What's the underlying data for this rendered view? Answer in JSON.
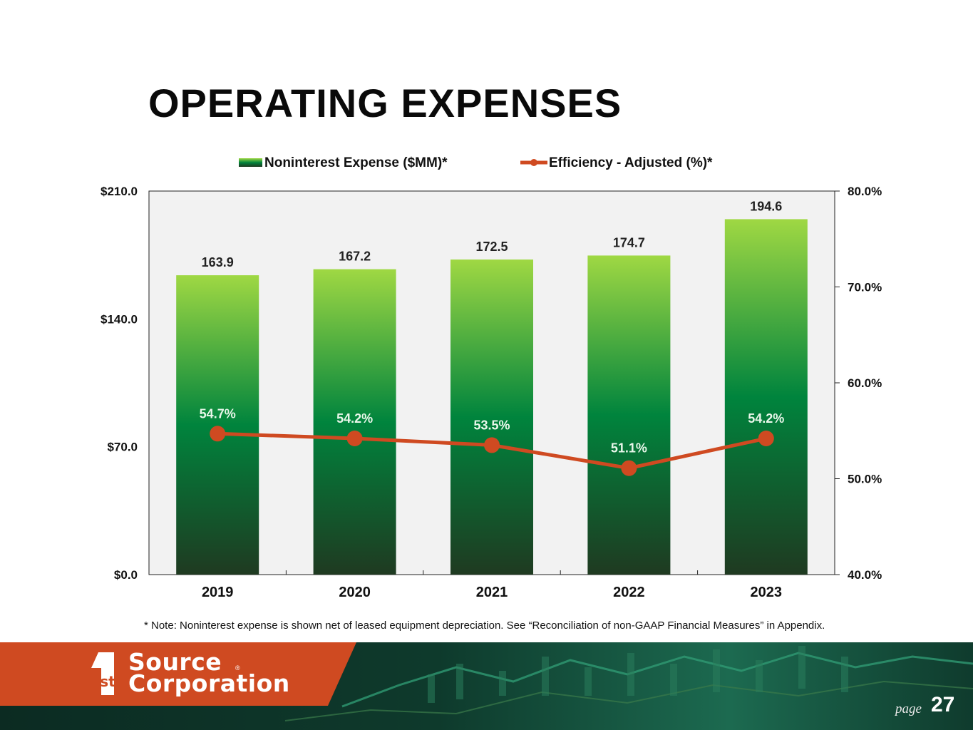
{
  "title": "OPERATING EXPENSES",
  "note": "* Note: Noninterest expense is shown net of leased equipment depreciation. See “Reconciliation of non-GAAP Financial Measures” in Appendix.",
  "footer": {
    "logo_line1": "Source",
    "logo_line2": "Corporation",
    "logo_mark": "st",
    "page_word": "page",
    "page_number": "27"
  },
  "colors": {
    "bar_top": "#9fd843",
    "bar_mid": "#00843d",
    "bar_bottom": "#1f3a21",
    "line": "#cf4a21",
    "plot_bg": "#f2f2f2"
  },
  "chart_data": {
    "type": "bar",
    "categories": [
      "2019",
      "2020",
      "2021",
      "2022",
      "2023"
    ],
    "series": [
      {
        "name": "Noninterest Expense ($MM)*",
        "type": "bar",
        "axis": "left",
        "values": [
          163.9,
          167.2,
          172.5,
          174.7,
          194.6
        ],
        "labels": [
          "163.9",
          "167.2",
          "172.5",
          "174.7",
          "194.6"
        ]
      },
      {
        "name": "Efficiency - Adjusted (%)*",
        "type": "line",
        "axis": "right",
        "values": [
          54.7,
          54.2,
          53.5,
          51.1,
          54.2
        ],
        "labels": [
          "54.7%",
          "54.2%",
          "53.5%",
          "51.1%",
          "54.2%"
        ]
      }
    ],
    "y_left": {
      "range": [
        0,
        210
      ],
      "ticks": [
        0,
        70,
        140,
        210
      ],
      "tick_labels": [
        "$0.0",
        "$70.0",
        "$140.0",
        "$210.0"
      ]
    },
    "y_right": {
      "range": [
        40,
        80
      ],
      "ticks": [
        40,
        50,
        60,
        70,
        80
      ],
      "tick_labels": [
        "40.0%",
        "50.0%",
        "60.0%",
        "70.0%",
        "80.0%"
      ]
    },
    "legend_position": "top-center",
    "grid": false
  }
}
